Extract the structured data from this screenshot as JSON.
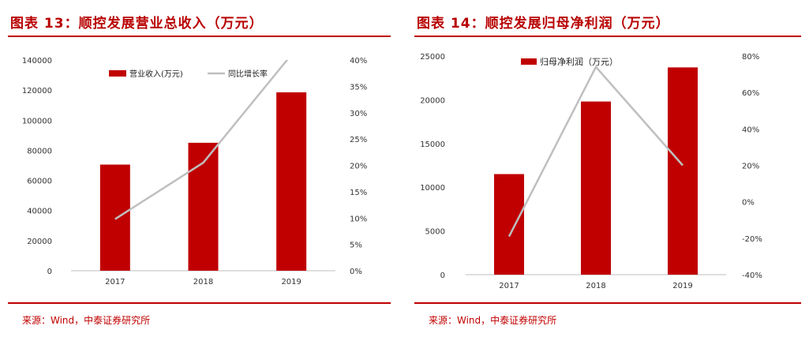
{
  "panels": [
    {
      "title": "图表 13：顺控发展营业总收入（万元）",
      "source": "来源：Wind，中泰证券研究所",
      "colors": {
        "bar": "#c00000",
        "line": "#bfbfbf",
        "title": "#b80000"
      },
      "chart_data": {
        "type": "bar",
        "categories": [
          "2017",
          "2018",
          "2019"
        ],
        "series": [
          {
            "name": "营业收入(万元)",
            "type": "bar",
            "axis": "left",
            "values": [
              70500,
              85000,
              118500
            ]
          },
          {
            "name": "同比增长率",
            "type": "line",
            "axis": "right",
            "values": [
              0.098,
              0.205,
              0.41
            ]
          }
        ],
        "ylim_left": [
          0,
          140000
        ],
        "yticks_left": [
          "0",
          "20000",
          "40000",
          "60000",
          "80000",
          "100000",
          "120000",
          "140000"
        ],
        "ylim_right": [
          0,
          0.4
        ],
        "yticks_right": [
          "0%",
          "5%",
          "10%",
          "15%",
          "20%",
          "25%",
          "30%",
          "35%",
          "40%"
        ],
        "legend_position": "top-center",
        "grid": false
      }
    },
    {
      "title": "图表 14：顺控发展归母净利润（万元）",
      "source": "来源：Wind，中泰证券研究所",
      "colors": {
        "bar": "#c00000",
        "line": "#bfbfbf",
        "title": "#b80000"
      },
      "chart_data": {
        "type": "bar",
        "categories": [
          "2017",
          "2018",
          "2019"
        ],
        "series": [
          {
            "name": "归母净利润（万元）",
            "type": "bar",
            "axis": "left",
            "values": [
              11500,
              19800,
              23700
            ]
          },
          {
            "type": "line",
            "axis": "right",
            "values": [
              -0.19,
              0.74,
              0.2
            ]
          }
        ],
        "ylim_left": [
          0,
          25000
        ],
        "yticks_left": [
          "0",
          "5000",
          "10000",
          "15000",
          "20000",
          "25000"
        ],
        "ylim_right": [
          -0.4,
          0.8
        ],
        "yticks_right": [
          "-40%",
          "-20%",
          "0%",
          "20%",
          "40%",
          "60%",
          "80%"
        ],
        "legend_position": "top-center",
        "grid": false
      }
    }
  ]
}
